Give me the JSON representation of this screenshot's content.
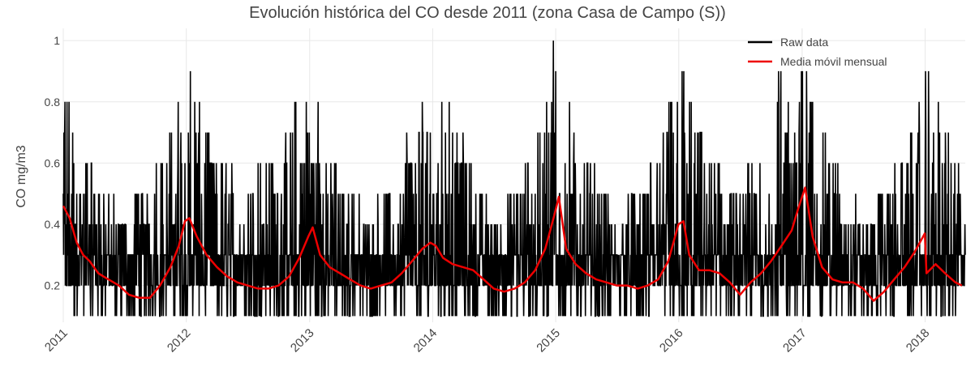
{
  "chart_data": {
    "type": "line",
    "title": "Evolución histórica del CO desde 2011 (zona Casa de Campo (S))",
    "xlabel": "",
    "ylabel": "CO mg/m3",
    "x_ticks": [
      "2011",
      "2012",
      "2013",
      "2014",
      "2015",
      "2016",
      "2017",
      "2018"
    ],
    "xlim": [
      "2011-01-01",
      "2018-04-30"
    ],
    "y_ticks": [
      0.2,
      0.4,
      0.6,
      0.8,
      1
    ],
    "ylim": [
      0.08,
      1.04
    ],
    "grid": true,
    "legend_position": "top-right",
    "colors": {
      "raw": "#000000",
      "moving_average": "#ee0000",
      "grid": "#e8e8e8",
      "text": "#444444"
    },
    "series": [
      {
        "name": "Raw data",
        "kind": "daily-noisy",
        "description_values": {
          "floor": 0.1,
          "typical_low": 0.2,
          "max": 1.0,
          "seasonal_envelope_x": [
            "2011-01-01",
            "2011-03-01",
            "2011-07-01",
            "2011-10-15",
            "2012-01-01",
            "2012-04-01",
            "2012-07-01",
            "2012-11-01",
            "2013-01-01",
            "2013-03-01",
            "2013-07-01",
            "2013-11-01",
            "2014-01-01",
            "2014-03-15",
            "2014-07-01",
            "2014-11-01",
            "2015-01-01",
            "2015-03-01",
            "2015-07-01",
            "2015-11-01",
            "2016-01-01",
            "2016-04-01",
            "2016-07-01",
            "2016-11-01",
            "2017-01-01",
            "2017-03-01",
            "2017-07-01",
            "2017-11-01",
            "2018-01-01",
            "2018-04-30"
          ],
          "seasonal_envelope_max": [
            0.9,
            0.6,
            0.4,
            0.6,
            0.9,
            0.6,
            0.5,
            0.7,
            0.9,
            0.6,
            0.4,
            0.7,
            0.9,
            0.7,
            0.4,
            0.6,
            1.0,
            0.7,
            0.4,
            0.6,
            0.9,
            0.6,
            0.5,
            0.9,
            0.9,
            0.7,
            0.4,
            0.6,
            0.9,
            0.5
          ]
        }
      },
      {
        "name": "Media móvil mensual",
        "x": [
          "2011-01-01",
          "2011-01-20",
          "2011-02-10",
          "2011-03-01",
          "2011-03-20",
          "2011-04-15",
          "2011-05-15",
          "2011-06-15",
          "2011-07-15",
          "2011-08-15",
          "2011-09-15",
          "2011-10-15",
          "2011-11-15",
          "2011-12-10",
          "2011-12-28",
          "2012-01-10",
          "2012-02-01",
          "2012-03-01",
          "2012-04-01",
          "2012-05-01",
          "2012-06-01",
          "2012-07-01",
          "2012-08-01",
          "2012-09-01",
          "2012-10-01",
          "2012-11-01",
          "2012-12-01",
          "2012-12-28",
          "2013-01-10",
          "2013-02-01",
          "2013-03-01",
          "2013-04-01",
          "2013-05-01",
          "2013-06-01",
          "2013-07-01",
          "2013-08-01",
          "2013-09-01",
          "2013-10-01",
          "2013-11-01",
          "2013-12-01",
          "2013-12-25",
          "2014-01-10",
          "2014-02-01",
          "2014-03-01",
          "2014-04-01",
          "2014-05-01",
          "2014-06-01",
          "2014-07-01",
          "2014-08-01",
          "2014-09-01",
          "2014-10-01",
          "2014-11-01",
          "2014-12-01",
          "2014-12-28",
          "2015-01-10",
          "2015-02-01",
          "2015-03-01",
          "2015-04-01",
          "2015-05-01",
          "2015-06-01",
          "2015-07-01",
          "2015-08-01",
          "2015-09-01",
          "2015-10-01",
          "2015-11-01",
          "2015-12-01",
          "2015-12-31",
          "2016-01-15",
          "2016-02-01",
          "2016-03-01",
          "2016-04-01",
          "2016-05-01",
          "2016-06-01",
          "2016-07-01",
          "2016-08-01",
          "2016-09-01",
          "2016-10-01",
          "2016-11-01",
          "2016-12-01",
          "2016-12-20",
          "2017-01-10",
          "2017-02-01",
          "2017-03-01",
          "2017-04-01",
          "2017-05-01",
          "2017-06-01",
          "2017-07-01",
          "2017-08-01",
          "2017-09-01",
          "2017-10-01",
          "2017-11-01",
          "2017-12-01",
          "2017-12-31",
          "2018-01-05",
          "2018-02-01",
          "2018-03-01",
          "2018-04-01",
          "2018-04-20"
        ],
        "y": [
          0.46,
          0.42,
          0.34,
          0.3,
          0.28,
          0.24,
          0.22,
          0.2,
          0.17,
          0.16,
          0.16,
          0.2,
          0.26,
          0.33,
          0.41,
          0.42,
          0.36,
          0.3,
          0.26,
          0.23,
          0.21,
          0.2,
          0.19,
          0.19,
          0.2,
          0.23,
          0.29,
          0.36,
          0.39,
          0.3,
          0.26,
          0.24,
          0.22,
          0.2,
          0.19,
          0.2,
          0.21,
          0.24,
          0.28,
          0.32,
          0.34,
          0.33,
          0.29,
          0.27,
          0.26,
          0.25,
          0.22,
          0.19,
          0.18,
          0.19,
          0.21,
          0.25,
          0.32,
          0.43,
          0.49,
          0.32,
          0.27,
          0.24,
          0.22,
          0.21,
          0.2,
          0.2,
          0.19,
          0.2,
          0.22,
          0.28,
          0.4,
          0.41,
          0.3,
          0.25,
          0.25,
          0.24,
          0.21,
          0.17,
          0.21,
          0.24,
          0.28,
          0.33,
          0.38,
          0.45,
          0.52,
          0.36,
          0.26,
          0.22,
          0.21,
          0.21,
          0.19,
          0.15,
          0.18,
          0.22,
          0.26,
          0.31,
          0.37,
          0.24,
          0.27,
          0.24,
          0.21,
          0.2
        ]
      }
    ]
  }
}
